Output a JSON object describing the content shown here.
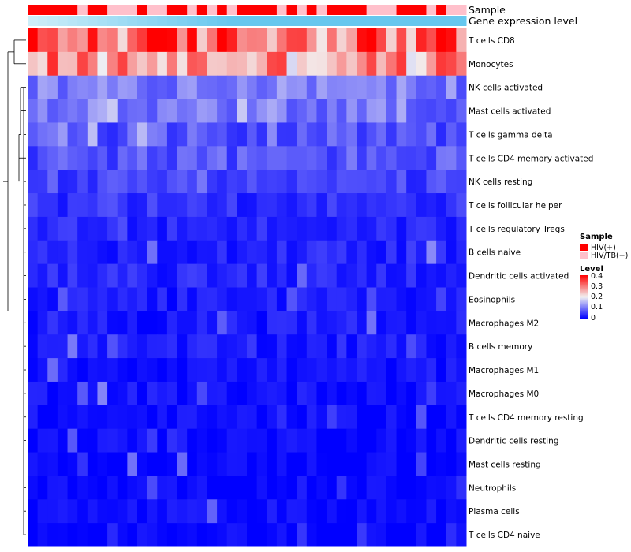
{
  "chart_data": {
    "type": "heatmap",
    "annotations": {
      "sample_label": "Sample",
      "expression_label": "Gene expression level"
    },
    "rows": [
      "T cells CD8",
      "Monocytes",
      "NK cells activated",
      "Mast cells activated",
      "T cells gamma delta",
      "T cells CD4 memory activated",
      "NK cells resting",
      "T cells follicular helper",
      "T cells regulatory  Tregs",
      "B cells naive",
      "Dendritic cells activated",
      "Eosinophils",
      "Macrophages M2",
      "B cells memory",
      "Macrophages M1",
      "Macrophages M0",
      "T cells CD4 memory resting",
      "Dendritic cells resting",
      "Mast cells resting",
      "Neutrophils",
      "Plasma cells",
      "T cells CD4 naive"
    ],
    "row_base_levels": [
      0.32,
      0.27,
      0.1,
      0.1,
      0.07,
      0.07,
      0.05,
      0.04,
      0.03,
      0.03,
      0.03,
      0.02,
      0.02,
      0.02,
      0.015,
      0.015,
      0.01,
      0.01,
      0.005,
      0.005,
      0.01,
      0.005
    ],
    "n_columns": 44,
    "sample_groups": [
      "HIV(+)",
      "HIV(+)",
      "HIV(+)",
      "HIV(+)",
      "HIV(+)",
      "HIV/TB(+)",
      "HIV(+)",
      "HIV(+)",
      "HIV/TB(+)",
      "HIV/TB(+)",
      "HIV/TB(+)",
      "HIV(+)",
      "HIV/TB(+)",
      "HIV/TB(+)",
      "HIV(+)",
      "HIV(+)",
      "HIV/TB(+)",
      "HIV(+)",
      "HIV/TB(+)",
      "HIV(+)",
      "HIV/TB(+)",
      "HIV(+)",
      "HIV(+)",
      "HIV(+)",
      "HIV(+)",
      "HIV/TB(+)",
      "HIV(+)",
      "HIV/TB(+)",
      "HIV(+)",
      "HIV/TB(+)",
      "HIV(+)",
      "HIV(+)",
      "HIV(+)",
      "HIV(+)",
      "HIV/TB(+)",
      "HIV/TB(+)",
      "HIV/TB(+)",
      "HIV(+)",
      "HIV(+)",
      "HIV(+)",
      "HIV/TB(+)",
      "HIV(+)",
      "HIV/TB(+)",
      "HIV/TB(+)"
    ],
    "legend": {
      "sample_title": "Sample",
      "sample_entries": [
        {
          "label": "HIV(+)",
          "color": "#ff0000"
        },
        {
          "label": "HIV/TB(+)",
          "color": "#ffc0cb"
        }
      ],
      "level_title": "Level",
      "level_ticks": [
        "0.4",
        "0.3",
        "0.2",
        "0.1",
        "0"
      ],
      "level_range": [
        0,
        0.4
      ]
    },
    "colors": {
      "low": "#0000ff",
      "mid": "#f2f2f2",
      "high": "#ff0000",
      "expression_bar": "#67c7ee",
      "expression_light": "#cdeef9"
    }
  }
}
